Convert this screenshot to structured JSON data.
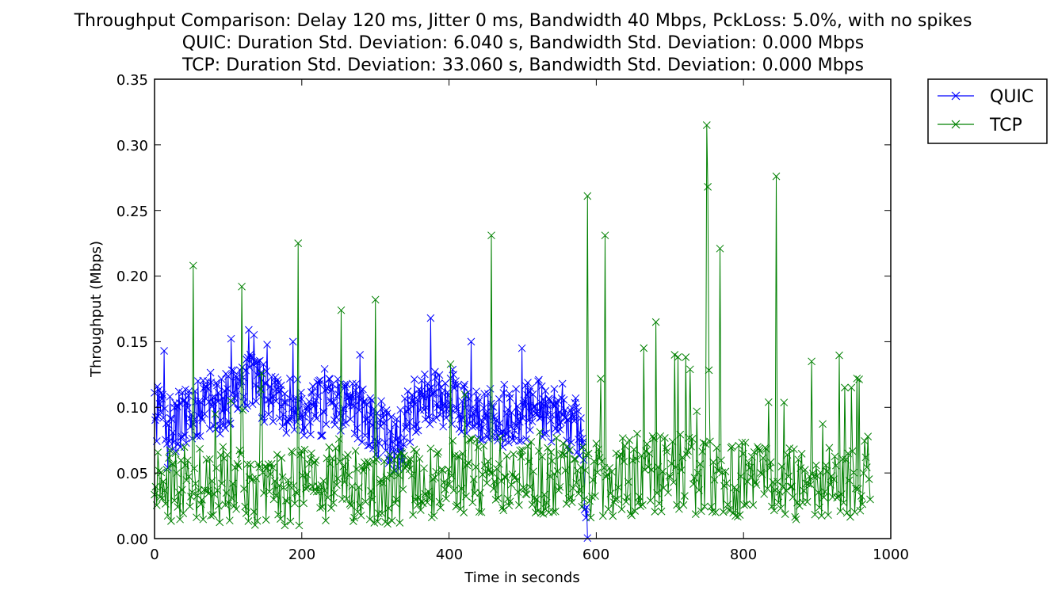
{
  "chart_data": {
    "type": "line",
    "title": [
      "Throughput Comparison: Delay 120 ms, Jitter 0 ms, Bandwidth 40 Mbps, PckLoss: 5.0%, with no spikes",
      "QUIC: Duration Std. Deviation: 6.040 s, Bandwidth Std. Deviation: 0.000 Mbps",
      "TCP: Duration Std. Deviation: 33.060 s, Bandwidth Std. Deviation: 0.000 Mbps"
    ],
    "xlabel": "Time in seconds",
    "ylabel": "Throughput (Mbps)",
    "xlim": [
      0,
      1000
    ],
    "ylim": [
      0,
      0.35
    ],
    "xticks": [
      "0",
      "200",
      "400",
      "600",
      "800",
      "1000"
    ],
    "yticks": [
      "0.00",
      "0.05",
      "0.10",
      "0.15",
      "0.20",
      "0.25",
      "0.30",
      "0.35"
    ],
    "grid": false,
    "legend": "outside-top-right",
    "marker": "x",
    "series": [
      {
        "name": "QUIC",
        "color": "#0000ff",
        "x_start": 0,
        "x_end": 588,
        "anchors": [
          [
            0,
            0.09
          ],
          [
            10,
            0.1
          ],
          [
            20,
            0.07
          ],
          [
            30,
            0.09
          ],
          [
            60,
            0.1
          ],
          [
            90,
            0.1
          ],
          [
            130,
            0.12
          ],
          [
            170,
            0.1
          ],
          [
            220,
            0.1
          ],
          [
            270,
            0.1
          ],
          [
            310,
            0.08
          ],
          [
            330,
            0.07
          ],
          [
            350,
            0.1
          ],
          [
            380,
            0.11
          ],
          [
            420,
            0.1
          ],
          [
            470,
            0.09
          ],
          [
            520,
            0.1
          ],
          [
            560,
            0.09
          ],
          [
            575,
            0.085
          ],
          [
            580,
            0.07
          ],
          [
            588,
            0.015
          ]
        ],
        "jitter": 0.022,
        "step": 1,
        "peaks": [
          [
            13,
            0.143
          ],
          [
            128,
            0.159
          ],
          [
            188,
            0.15
          ],
          [
            279,
            0.14
          ],
          [
            375,
            0.168
          ],
          [
            430,
            0.15
          ],
          [
            499,
            0.145
          ],
          [
            586,
            0.016
          ]
        ]
      },
      {
        "name": "TCP",
        "color": "#008000",
        "x_start": 0,
        "x_end": 972,
        "anchors": [
          [
            0,
            0.04
          ],
          [
            100,
            0.04
          ],
          [
            200,
            0.04
          ],
          [
            300,
            0.04
          ],
          [
            400,
            0.045
          ],
          [
            500,
            0.05
          ],
          [
            600,
            0.045
          ],
          [
            700,
            0.05
          ],
          [
            800,
            0.045
          ],
          [
            900,
            0.04
          ],
          [
            972,
            0.05
          ]
        ],
        "jitter": 0.03,
        "step": 1.5,
        "peaks": [
          [
            52,
            0.208
          ],
          [
            118,
            0.192
          ],
          [
            195,
            0.225
          ],
          [
            254,
            0.174
          ],
          [
            300,
            0.182
          ],
          [
            457,
            0.231
          ],
          [
            588,
            0.261
          ],
          [
            612,
            0.231
          ],
          [
            681,
            0.165
          ],
          [
            750,
            0.315
          ],
          [
            752,
            0.268
          ],
          [
            768,
            0.221
          ],
          [
            844,
            0.276
          ],
          [
            892,
            0.135
          ],
          [
            937,
            0.115
          ]
        ]
      }
    ]
  }
}
